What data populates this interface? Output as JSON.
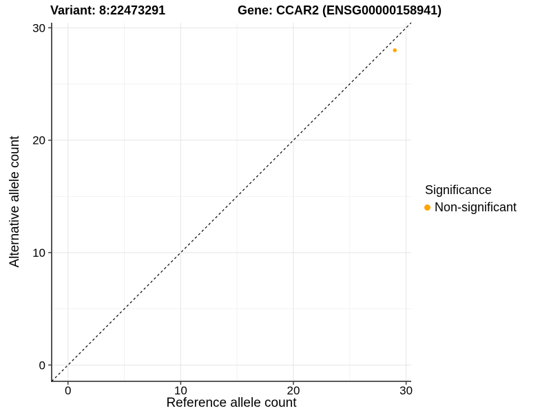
{
  "chart_data": {
    "type": "scatter",
    "titles": {
      "left": "Variant: 8:22473291",
      "right": "Gene: CCAR2 (ENSG00000158941)"
    },
    "xlabel": "Reference allele count",
    "ylabel": "Alternative allele count",
    "xlim": [
      -1.45,
      30.45
    ],
    "ylim": [
      -1.45,
      30.45
    ],
    "x_ticks": [
      0,
      10,
      20,
      30
    ],
    "y_ticks": [
      0,
      10,
      20,
      30
    ],
    "x_minor_ticks": [
      5,
      15,
      25
    ],
    "y_minor_ticks": [
      5,
      15,
      25
    ],
    "grid": "major and minor gridlines on white panel, axis lines left and bottom only",
    "reference_line": {
      "kind": "identity y=x",
      "style": "dashed",
      "color": "#000000",
      "from": [
        -1.45,
        -1.45
      ],
      "to": [
        30.45,
        30.45
      ]
    },
    "series": [
      {
        "name": "Non-significant",
        "color": "#FFA500",
        "points": [
          {
            "x": 29,
            "y": 28
          }
        ]
      }
    ],
    "legend": {
      "title": "Significance",
      "position": "right",
      "items": [
        {
          "label": "Non-significant",
          "color": "#FFA500",
          "marker": "circle"
        }
      ]
    },
    "styles": {
      "axis_line_color": "#404040",
      "tick_color": "#404040",
      "grid_major_color": "#E4E4E4",
      "grid_minor_color": "#F2F2F2",
      "tick_label_color": "#000000",
      "background": "#FFFFFF"
    }
  }
}
